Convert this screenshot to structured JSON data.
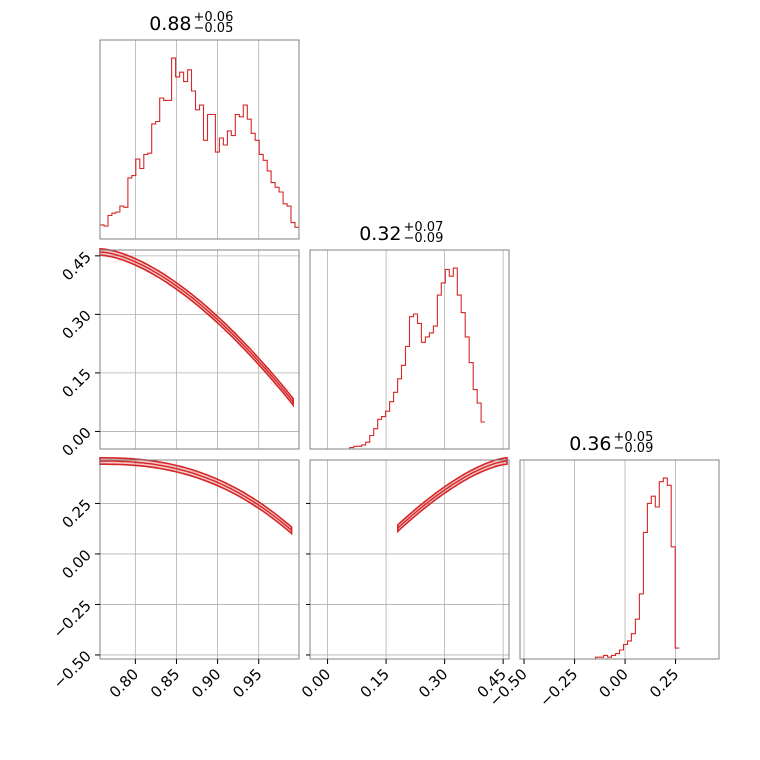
{
  "chart_data": {
    "type": "corner",
    "color": "#d62728",
    "titles": [
      {
        "value": "0.88",
        "plus": "+0.06",
        "minus": "−0.05"
      },
      {
        "value": "0.32",
        "plus": "+0.07",
        "minus": "−0.09"
      },
      {
        "value": "0.36",
        "plus": "+0.05",
        "minus": "−0.09"
      }
    ],
    "ranges": [
      [
        0.757,
        0.999
      ],
      [
        -0.045,
        0.465
      ],
      [
        -0.52,
        0.465
      ]
    ],
    "ticks": [
      [
        0.8,
        0.85,
        0.9,
        0.95
      ],
      [
        0.0,
        0.15,
        0.3,
        0.45
      ],
      [
        -0.5,
        -0.25,
        0.0,
        0.25
      ]
    ],
    "tick_labels": [
      [
        "0.80",
        "0.85",
        "0.90",
        "0.95"
      ],
      [
        "0.00",
        "0.15",
        "0.30",
        "0.45"
      ],
      [
        "−0.50",
        "−0.25",
        "0.00",
        "0.25"
      ]
    ],
    "histograms": [
      {
        "edges_start": 0.757,
        "bin_width": 0.00484,
        "counts": [
          12,
          11,
          20,
          22,
          23,
          28,
          27,
          52,
          54,
          68,
          60,
          72,
          73,
          98,
          100,
          120,
          118,
          118,
          154,
          138,
          142,
          134,
          144,
          126,
          110,
          114,
          84,
          106,
          106,
          74,
          86,
          80,
          92,
          88,
          106,
          104,
          114,
          102,
          90,
          84,
          72,
          67,
          58,
          48,
          44,
          40,
          30,
          28,
          14,
          10
        ]
      },
      {
        "edges_start": -0.045,
        "bin_width": 0.0102,
        "counts": [
          0,
          0,
          0,
          0,
          0,
          0,
          0,
          0,
          0,
          0,
          1,
          2,
          2,
          3,
          5,
          10,
          15,
          22,
          24,
          28,
          35,
          42,
          52,
          62,
          76,
          98,
          100,
          93,
          79,
          83,
          86,
          91,
          114,
          123,
          133,
          128,
          134,
          114,
          101,
          83,
          64,
          44,
          34,
          20
        ]
      },
      {
        "edges_start": -0.52,
        "bin_width": 0.0197,
        "counts": [
          0,
          0,
          0,
          0,
          0,
          0,
          0,
          0,
          0,
          0,
          0,
          0,
          0,
          0,
          0,
          0,
          0,
          0,
          0,
          1,
          1,
          2,
          1,
          2,
          3,
          5,
          8,
          10,
          14,
          22,
          36,
          70,
          86,
          90,
          84,
          98,
          100,
          96,
          62,
          6
        ]
      }
    ],
    "grid": true
  }
}
